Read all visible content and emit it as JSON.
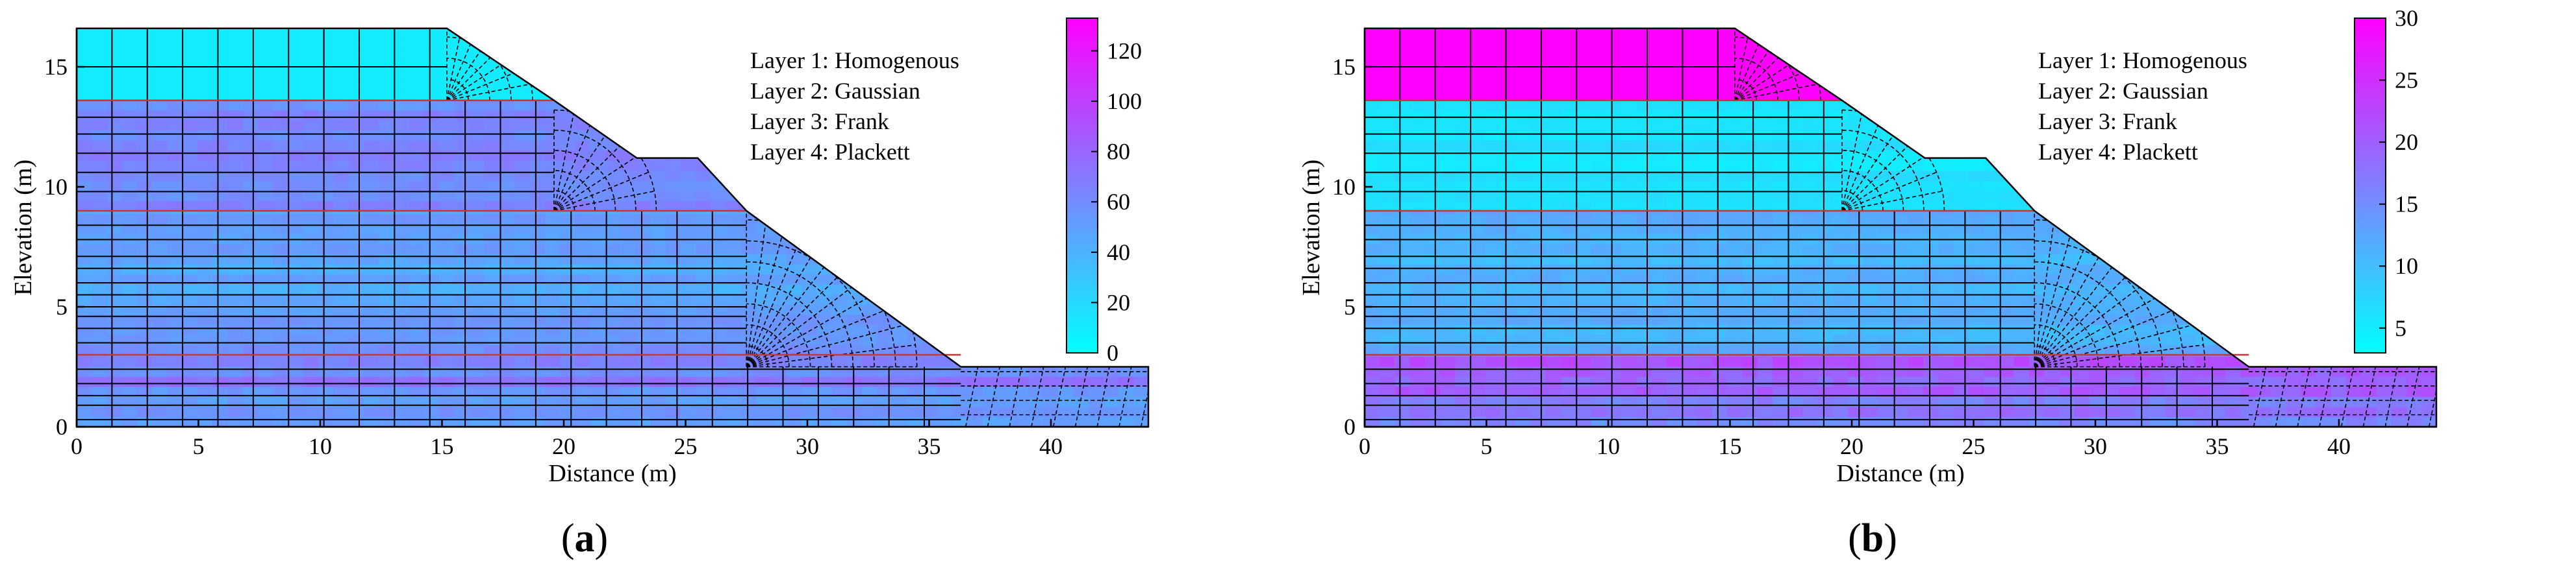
{
  "panels": [
    {
      "id": "a",
      "caption_open": "(",
      "caption_letter": "a",
      "caption_close": ")",
      "xlabel": "Distance (m)",
      "ylabel": "Elevation (m)",
      "x_ticks": [
        "0",
        "5",
        "10",
        "15",
        "20",
        "25",
        "30",
        "35",
        "40"
      ],
      "y_ticks": [
        "0",
        "5",
        "10",
        "15"
      ],
      "legend": [
        "Layer 1: Homogenous",
        "Layer 2: Gaussian",
        "Layer 3: Frank",
        "Layer 4: Plackett"
      ],
      "colorbar_ticks": [
        "0",
        "20",
        "40",
        "60",
        "80",
        "100",
        "120"
      ],
      "colorbar_range": [
        0,
        133
      ],
      "layer_means": {
        "top": 10,
        "l2": 66,
        "l3": 50,
        "l4": 62
      },
      "layer_jitter": {
        "top": 0,
        "l2": 12,
        "l3": 10,
        "l4": 12
      }
    },
    {
      "id": "b",
      "caption_open": "(",
      "caption_letter": "b",
      "caption_close": ")",
      "xlabel": "Distance (m)",
      "ylabel": "Elevation (m)",
      "x_ticks": [
        "0",
        "5",
        "10",
        "15",
        "20",
        "25",
        "30",
        "35",
        "40"
      ],
      "y_ticks": [
        "0",
        "5",
        "10",
        "15"
      ],
      "legend": [
        "Layer 1: Homogenous",
        "Layer 2: Gaussian",
        "Layer 3: Frank",
        "Layer 4: Plackett"
      ],
      "colorbar_ticks": [
        "5",
        "10",
        "15",
        "20",
        "25",
        "30"
      ],
      "colorbar_range": [
        3,
        30
      ],
      "layer_means": {
        "top": 30,
        "l2": 6,
        "l3": 11,
        "l4": 19
      },
      "layer_jitter": {
        "top": 0,
        "l2": 1,
        "l3": 2,
        "l4": 4
      }
    }
  ],
  "colors": {
    "colormap_low": "#00ffff",
    "colormap_high": "#ff00ff",
    "mesh": "#000000",
    "layer_boundary": "#cc3333"
  }
}
